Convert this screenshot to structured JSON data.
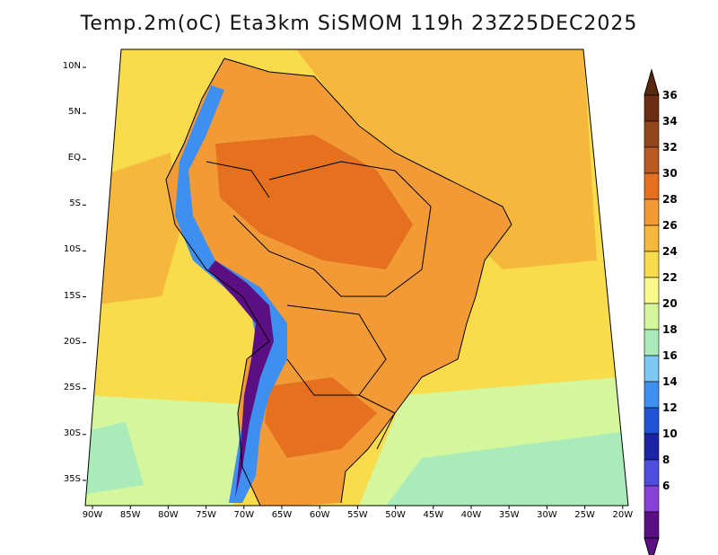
{
  "title": "Temp.2m(oC) Eta3km SiSMOM 119h 23Z25DEC2025",
  "lat_labels": [
    "10N",
    "5N",
    "EQ",
    "5S",
    "10S",
    "15S",
    "20S",
    "25S",
    "30S",
    "35S"
  ],
  "lon_labels": [
    "90W",
    "85W",
    "80W",
    "75W",
    "70W",
    "65W",
    "60W",
    "55W",
    "50W",
    "45W",
    "40W",
    "35W",
    "30W",
    "25W",
    "20W"
  ],
  "colorbar": {
    "labels": [
      "36",
      "34",
      "32",
      "30",
      "28",
      "26",
      "24",
      "22",
      "20",
      "18",
      "16",
      "14",
      "12",
      "10",
      "8",
      "6"
    ],
    "colors": [
      "#6b2e12",
      "#93451e",
      "#b85a22",
      "#e5701f",
      "#f29a35",
      "#f6b83c",
      "#f8dc4c",
      "#fafa8c",
      "#d4f69c",
      "#a9ecb9",
      "#7cc9f3",
      "#3f8ff0",
      "#1f52d6",
      "#1c24a6",
      "#4d4ee0",
      "#8a3fd8",
      "#5b0f83"
    ],
    "min_arrow_color": "#5b0f83",
    "max_arrow_color": "#5a2a10"
  },
  "map_colors": {
    "ocean_warm": "#f6b83c",
    "ocean_mid": "#f8dc4c",
    "ocean_cool": "#d4f69c",
    "ocean_cold": "#a9ecb9",
    "land_hot": "#e5701f",
    "land_warm": "#f29a35",
    "andes": "#5b0f83",
    "andes_mid": "#3f8ff0",
    "border": "#000000"
  }
}
